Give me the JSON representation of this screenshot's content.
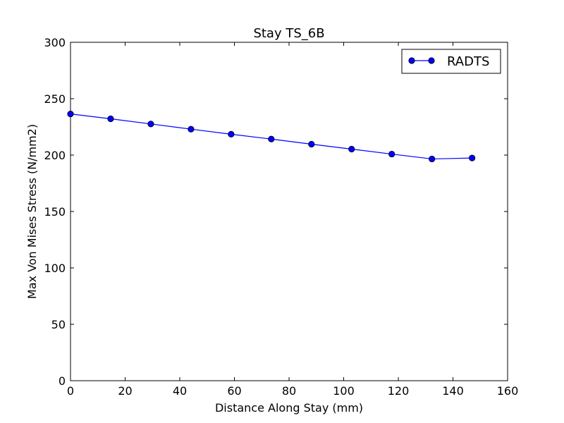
{
  "chart_data": {
    "type": "line",
    "title": "Stay TS_6B",
    "xlabel": "Distance Along Stay (mm)",
    "ylabel": "Max Von Mises Stress (N/mm2)",
    "xlim": [
      0,
      160
    ],
    "ylim": [
      0,
      300
    ],
    "xticks": [
      0,
      20,
      40,
      60,
      80,
      100,
      120,
      140,
      160
    ],
    "yticks": [
      0,
      50,
      100,
      150,
      200,
      250,
      300
    ],
    "grid": false,
    "legend_position": "top-right",
    "series": [
      {
        "name": "RADTS",
        "color": "#0000ff",
        "marker": "circle",
        "x": [
          0,
          14.7,
          29.4,
          44.1,
          58.8,
          73.5,
          88.2,
          102.9,
          117.6,
          132.3,
          147
        ],
        "y": [
          236.5,
          232.2,
          227.6,
          223.0,
          218.5,
          214.2,
          209.7,
          205.3,
          200.9,
          196.6,
          197.4
        ]
      }
    ]
  }
}
